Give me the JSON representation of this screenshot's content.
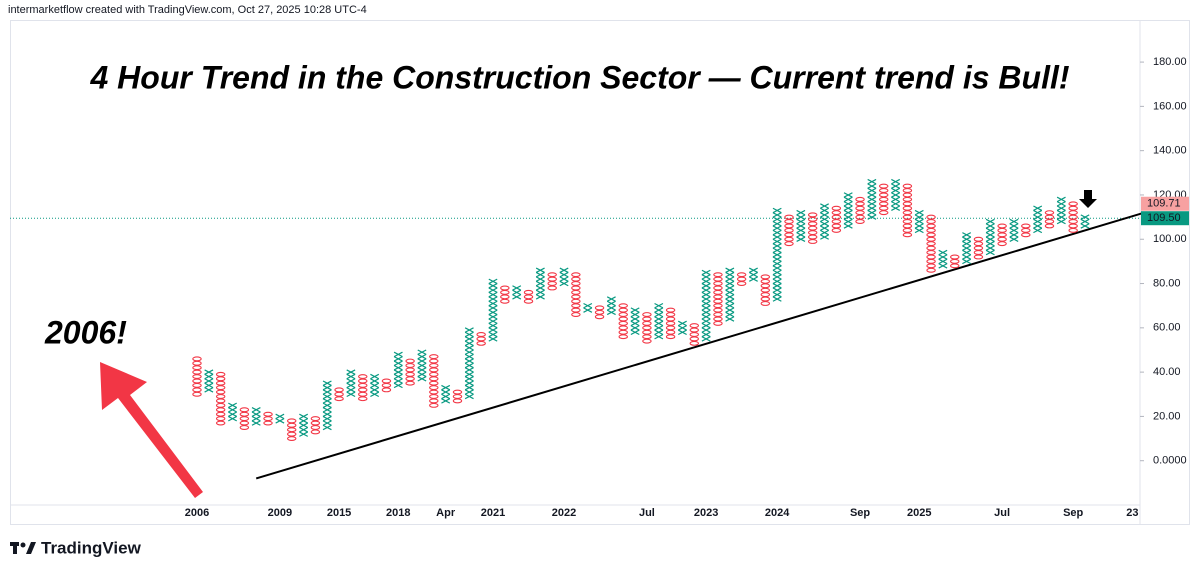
{
  "header": "intermarketflow created with TradingView.com, Oct 27, 2025 10:28 UTC-4",
  "footer": "TradingView",
  "chart_data": {
    "type": "point_and_figure",
    "title": "4 Hour Trend in the Construction Sector — Current trend is Bull!",
    "annotation": "2006!",
    "box_size": 2,
    "x_color": "#089981",
    "o_color": "#f23645",
    "categories": [
      "2006",
      null,
      null,
      null,
      null,
      null,
      null,
      "2009",
      null,
      null,
      null,
      null,
      "2015",
      null,
      null,
      null,
      null,
      "2018",
      null,
      null,
      null,
      "Apr",
      null,
      null,
      null,
      "2021",
      null,
      null,
      null,
      null,
      null,
      "2022",
      null,
      null,
      null,
      null,
      null,
      null,
      "Jul",
      null,
      null,
      null,
      null,
      "2023",
      null,
      null,
      null,
      null,
      null,
      "2024",
      null,
      null,
      null,
      null,
      null,
      null,
      "Sep",
      null,
      null,
      null,
      null,
      "2025",
      null,
      null,
      null,
      null,
      null,
      null,
      "Jul",
      null,
      null,
      null,
      null,
      null,
      "Sep",
      null,
      null,
      null,
      null,
      "23"
    ],
    "columns": [
      {
        "type": "O",
        "low": 30,
        "high": 45
      },
      {
        "type": "X",
        "low": 32,
        "high": 40
      },
      {
        "type": "O",
        "low": 17,
        "high": 38
      },
      {
        "type": "X",
        "low": 19,
        "high": 24
      },
      {
        "type": "O",
        "low": 15,
        "high": 22
      },
      {
        "type": "X",
        "low": 17,
        "high": 22
      },
      {
        "type": "O",
        "low": 17,
        "high": 20
      },
      {
        "type": "X",
        "low": 18,
        "high": 20
      },
      {
        "type": "O",
        "low": 10,
        "high": 18
      },
      {
        "type": "X",
        "low": 12,
        "high": 20
      },
      {
        "type": "O",
        "low": 13,
        "high": 18
      },
      {
        "type": "X",
        "low": 15,
        "high": 34
      },
      {
        "type": "O",
        "low": 28,
        "high": 32
      },
      {
        "type": "X",
        "low": 30,
        "high": 40
      },
      {
        "type": "O",
        "low": 28,
        "high": 38
      },
      {
        "type": "X",
        "low": 30,
        "high": 37
      },
      {
        "type": "O",
        "low": 32,
        "high": 35
      },
      {
        "type": "X",
        "low": 34,
        "high": 47
      },
      {
        "type": "O",
        "low": 35,
        "high": 45
      },
      {
        "type": "X",
        "low": 37,
        "high": 48
      },
      {
        "type": "O",
        "low": 25,
        "high": 46
      },
      {
        "type": "X",
        "low": 27,
        "high": 32
      },
      {
        "type": "O",
        "low": 27,
        "high": 30
      },
      {
        "type": "X",
        "low": 29,
        "high": 58
      },
      {
        "type": "O",
        "low": 53,
        "high": 56
      },
      {
        "type": "X",
        "low": 55,
        "high": 80
      },
      {
        "type": "O",
        "low": 72,
        "high": 78
      },
      {
        "type": "X",
        "low": 74,
        "high": 78
      },
      {
        "type": "O",
        "low": 72,
        "high": 76
      },
      {
        "type": "X",
        "low": 74,
        "high": 86
      },
      {
        "type": "O",
        "low": 78,
        "high": 84
      },
      {
        "type": "X",
        "low": 80,
        "high": 86
      },
      {
        "type": "O",
        "low": 66,
        "high": 84
      },
      {
        "type": "X",
        "low": 68,
        "high": 70
      },
      {
        "type": "O",
        "low": 65,
        "high": 68
      },
      {
        "type": "X",
        "low": 67,
        "high": 72
      },
      {
        "type": "O",
        "low": 56,
        "high": 70
      },
      {
        "type": "X",
        "low": 58,
        "high": 68
      },
      {
        "type": "O",
        "low": 54,
        "high": 66
      },
      {
        "type": "X",
        "low": 56,
        "high": 70
      },
      {
        "type": "O",
        "low": 56,
        "high": 68
      },
      {
        "type": "X",
        "low": 58,
        "high": 62
      },
      {
        "type": "O",
        "low": 53,
        "high": 60
      },
      {
        "type": "X",
        "low": 55,
        "high": 85
      },
      {
        "type": "O",
        "low": 62,
        "high": 83
      },
      {
        "type": "X",
        "low": 64,
        "high": 85
      },
      {
        "type": "O",
        "low": 80,
        "high": 83
      },
      {
        "type": "X",
        "low": 82,
        "high": 85
      },
      {
        "type": "O",
        "low": 71,
        "high": 83
      },
      {
        "type": "X",
        "low": 73,
        "high": 112
      },
      {
        "type": "O",
        "low": 98,
        "high": 110
      },
      {
        "type": "X",
        "low": 100,
        "high": 112
      },
      {
        "type": "O",
        "low": 99,
        "high": 110
      },
      {
        "type": "X",
        "low": 101,
        "high": 115
      },
      {
        "type": "O",
        "low": 104,
        "high": 113
      },
      {
        "type": "X",
        "low": 106,
        "high": 120
      },
      {
        "type": "O",
        "low": 108,
        "high": 118
      },
      {
        "type": "X",
        "low": 110,
        "high": 125
      },
      {
        "type": "O",
        "low": 112,
        "high": 123
      },
      {
        "type": "X",
        "low": 114,
        "high": 125
      },
      {
        "type": "O",
        "low": 102,
        "high": 123
      },
      {
        "type": "X",
        "low": 104,
        "high": 112
      },
      {
        "type": "O",
        "low": 86,
        "high": 110
      },
      {
        "type": "X",
        "low": 88,
        "high": 94
      },
      {
        "type": "O",
        "low": 88,
        "high": 92
      },
      {
        "type": "X",
        "low": 90,
        "high": 102
      },
      {
        "type": "O",
        "low": 92,
        "high": 100
      },
      {
        "type": "X",
        "low": 94,
        "high": 108
      },
      {
        "type": "O",
        "low": 98,
        "high": 106
      },
      {
        "type": "X",
        "low": 100,
        "high": 108
      },
      {
        "type": "O",
        "low": 102,
        "high": 106
      },
      {
        "type": "X",
        "low": 104,
        "high": 114
      },
      {
        "type": "O",
        "low": 106,
        "high": 112
      },
      {
        "type": "X",
        "low": 108,
        "high": 118
      },
      {
        "type": "O",
        "low": 104,
        "high": 116
      },
      {
        "type": "X",
        "low": 106,
        "high": 110
      },
      null,
      null,
      null,
      null
    ],
    "ylim": [
      -20,
      199
    ],
    "yticks": [
      {
        "value": 0,
        "label": "0.0000"
      },
      {
        "value": 20,
        "label": "20.00"
      },
      {
        "value": 40,
        "label": "40.00"
      },
      {
        "value": 60,
        "label": "60.00"
      },
      {
        "value": 80,
        "label": "80.00"
      },
      {
        "value": 100,
        "label": "100.00"
      },
      {
        "value": 120,
        "label": "120.00"
      },
      {
        "value": 140,
        "label": "140.00"
      },
      {
        "value": 160,
        "label": "160.00"
      },
      {
        "value": 180,
        "label": "180.00"
      }
    ],
    "price_labels": [
      {
        "value": 109.71,
        "label": "109.71",
        "color": "#f7a1a1"
      },
      {
        "value": 109.5,
        "label": "109.50",
        "color": "#089981"
      }
    ],
    "current_price": 109.5,
    "trendline": {
      "from": [
        5,
        -8
      ],
      "to": [
        80,
        112
      ]
    }
  }
}
